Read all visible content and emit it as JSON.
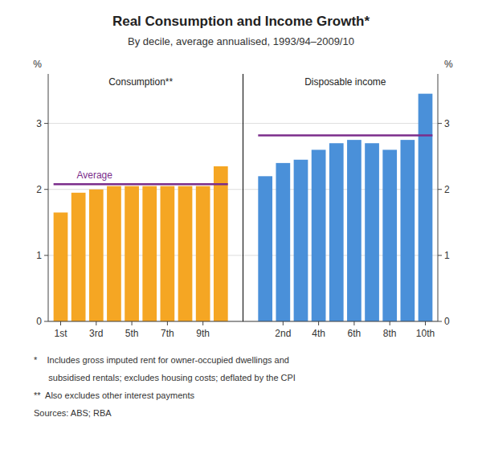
{
  "chart_data": {
    "type": "bar",
    "title": "Real Consumption and Income Growth*",
    "subtitle": "By decile, average annualised, 1993/94–2009/10",
    "y_label": "%",
    "series": [
      {
        "name": "Consumption**",
        "color": "#F5A623",
        "categories": [
          "1st",
          null,
          "3rd",
          null,
          "5th",
          null,
          "7th",
          null,
          "9th",
          null
        ],
        "values": [
          1.65,
          1.95,
          2.0,
          2.05,
          2.05,
          2.05,
          2.05,
          2.05,
          2.05,
          2.35
        ]
      },
      {
        "name": "Disposable income",
        "color": "#4A90D9",
        "categories": [
          null,
          "2nd",
          null,
          "4th",
          null,
          "6th",
          null,
          "8th",
          null,
          "10th"
        ],
        "values": [
          2.2,
          2.4,
          2.45,
          2.6,
          2.7,
          2.75,
          2.7,
          2.6,
          2.75,
          3.45
        ]
      }
    ],
    "average": {
      "label": "Average",
      "color": "#7B2D8B",
      "values": [
        2.08,
        2.82
      ]
    },
    "ylim": [
      0,
      3.75
    ],
    "yticks": [
      0,
      1,
      2,
      3
    ],
    "y2lim": [
      0,
      3.75
    ],
    "y2ticks": [
      0,
      1,
      2,
      3
    ],
    "grid": true,
    "footnotes": [
      "*    Includes gross imputed rent for owner-occupied dwellings and",
      "      subsidised rentals; excludes housing costs; deflated by the CPI",
      "**  Also excludes other interest payments",
      "Sources: ABS; RBA"
    ]
  }
}
